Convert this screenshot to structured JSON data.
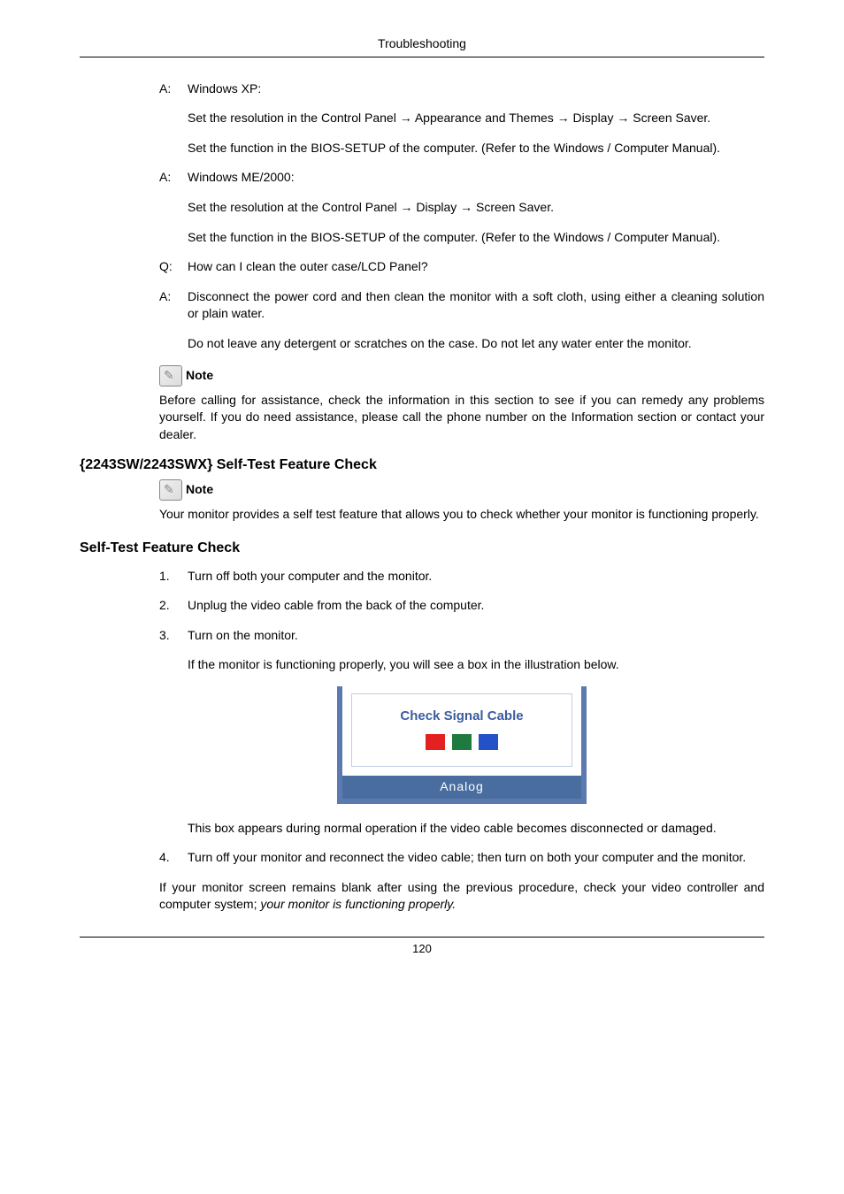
{
  "header": {
    "title": "Troubleshooting"
  },
  "qa": [
    {
      "label": "A:",
      "text": "Windows XP:"
    },
    {
      "label": "",
      "text": "Set the resolution in the Control Panel → Appearance and Themes → Display → Screen Saver."
    },
    {
      "label": "",
      "text": "Set the function in the BIOS-SETUP of the computer. (Refer to the Windows / Computer Manual)."
    },
    {
      "label": "A:",
      "text": "Windows ME/2000:"
    },
    {
      "label": "",
      "text": "Set the resolution at the Control Panel → Display → Screen Saver."
    },
    {
      "label": "",
      "text": "Set the function in the BIOS-SETUP of the computer. (Refer to the Windows / Computer Manual)."
    },
    {
      "label": "Q:",
      "text": "How can I clean the outer case/LCD Panel?"
    },
    {
      "label": "A:",
      "text": "Disconnect the power cord and then clean the monitor with a soft cloth, using either a cleaning solution or plain water."
    },
    {
      "label": "",
      "text": "Do not leave any detergent or scratches on the case. Do not let any water enter the monitor."
    }
  ],
  "note1": {
    "label": "Note",
    "text": "Before calling for assistance, check the information in this section to see if you can remedy any problems yourself. If you do need assistance, please call the phone number on the Information section or contact your dealer."
  },
  "section1": {
    "title": "{2243SW/2243SWX} Self-Test Feature Check",
    "noteLabel": "Note",
    "noteText": "Your monitor provides a self test feature that allows you to check whether your monitor is functioning properly."
  },
  "section2": {
    "title": "Self-Test Feature Check",
    "steps": [
      {
        "num": "1.",
        "text": "Turn off both your computer and the monitor."
      },
      {
        "num": "2.",
        "text": "Unplug the video cable from the back of the computer."
      },
      {
        "num": "3.",
        "text": "Turn on the monitor."
      },
      {
        "num": "",
        "text": "If the monitor is functioning properly, you will see a box in the illustration below."
      }
    ],
    "signal": {
      "text": "Check Signal Cable",
      "bottom": "Analog",
      "colors": {
        "red": "#e32121",
        "green": "#1f7a3f",
        "blue": "#2450c8"
      }
    },
    "afterImage": [
      {
        "num": "",
        "text": "This box appears during normal operation if the video cable becomes disconnected or damaged."
      },
      {
        "num": "4.",
        "text": "Turn off your monitor and reconnect the video cable; then turn on both your computer and the monitor."
      }
    ],
    "closingPlain": "If your monitor screen remains blank after using the previous procedure, check your video controller and computer system; ",
    "closingItalic": "your monitor is functioning properly."
  },
  "footer": {
    "page": "120"
  }
}
